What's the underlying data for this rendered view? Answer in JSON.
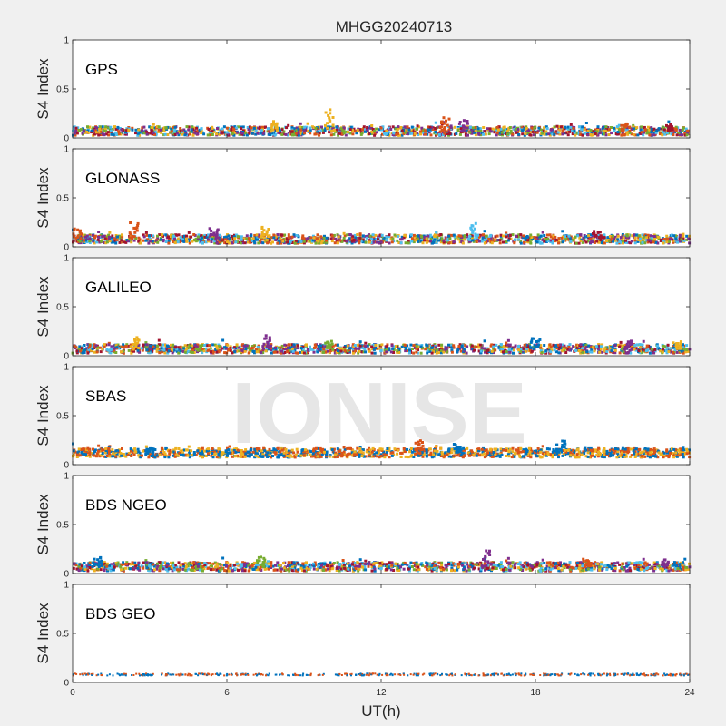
{
  "chart_data": {
    "type": "scatter",
    "title": "MHGG20240713",
    "xlabel": "UT(h)",
    "ylabel": "S4 Index",
    "xlim": [
      0,
      24
    ],
    "ylim": [
      0,
      1
    ],
    "x_ticks": [
      "0",
      "6",
      "12",
      "18",
      "24"
    ],
    "y_ticks": [
      "0",
      "0.5",
      "1"
    ],
    "watermark": "IONISE",
    "colors": [
      "#0072BD",
      "#D95319",
      "#EDB120",
      "#7E2F8E",
      "#77AC30",
      "#4DBEEE",
      "#A2142F"
    ],
    "panels": [
      {
        "label": "GPS",
        "baseline": 0.07,
        "spikes": [
          [
            10.0,
            0.28
          ],
          [
            14.5,
            0.2
          ],
          [
            15.2,
            0.18
          ],
          [
            7.8,
            0.16
          ],
          [
            21.5,
            0.15
          ],
          [
            23.2,
            0.13
          ]
        ]
      },
      {
        "label": "GLONASS",
        "baseline": 0.08,
        "spikes": [
          [
            2.4,
            0.24
          ],
          [
            15.6,
            0.23
          ],
          [
            7.5,
            0.2
          ],
          [
            5.5,
            0.18
          ],
          [
            0.2,
            0.18
          ],
          [
            20.4,
            0.16
          ]
        ]
      },
      {
        "label": "GALILEO",
        "baseline": 0.07,
        "spikes": [
          [
            2.5,
            0.18
          ],
          [
            18.0,
            0.18
          ],
          [
            7.6,
            0.2
          ],
          [
            10.0,
            0.15
          ],
          [
            21.6,
            0.15
          ],
          [
            23.5,
            0.14
          ]
        ]
      },
      {
        "label": "SBAS",
        "baseline": 0.12,
        "spikes": [
          [
            13.5,
            0.24
          ],
          [
            19.0,
            0.24
          ],
          [
            15.0,
            0.2
          ],
          [
            3.0,
            0.16
          ]
        ]
      },
      {
        "label": "BDS NGEO",
        "baseline": 0.07,
        "spikes": [
          [
            1.0,
            0.16
          ],
          [
            7.3,
            0.17
          ],
          [
            16.1,
            0.24
          ],
          [
            20.0,
            0.14
          ],
          [
            23.0,
            0.14
          ]
        ]
      },
      {
        "label": "BDS GEO",
        "baseline": 0.08,
        "spikes": []
      }
    ]
  }
}
